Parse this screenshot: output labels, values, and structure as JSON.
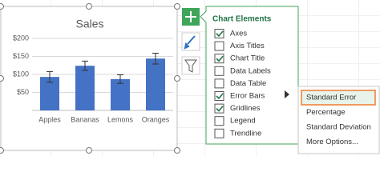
{
  "chart_data": {
    "type": "bar",
    "title": "Sales",
    "categories": [
      "Apples",
      "Bananas",
      "Lemons",
      "Oranges"
    ],
    "values": [
      93,
      124,
      87,
      144
    ],
    "errors": [
      15,
      13,
      12,
      15
    ],
    "color": "#4472c4",
    "ylim": [
      0,
      200
    ],
    "yticks": [
      {
        "value": 50,
        "label": "$50"
      },
      {
        "value": 100,
        "label": "$100"
      },
      {
        "value": 150,
        "label": "$150"
      },
      {
        "value": 200,
        "label": "$200"
      }
    ],
    "grid": true
  },
  "panel": {
    "title": "Chart Elements",
    "items": [
      {
        "label": "Axes",
        "checked": true
      },
      {
        "label": "Axis Titles",
        "checked": false
      },
      {
        "label": "Chart Title",
        "checked": true
      },
      {
        "label": "Data Labels",
        "checked": false
      },
      {
        "label": "Data Table",
        "checked": false
      },
      {
        "label": "Error Bars",
        "checked": true
      },
      {
        "label": "Gridlines",
        "checked": true
      },
      {
        "label": "Legend",
        "checked": false
      },
      {
        "label": "Trendline",
        "checked": false
      }
    ]
  },
  "submenu": {
    "items": [
      "Standard Error",
      "Percentage",
      "Standard Deviation",
      "More Options..."
    ],
    "selected": 0
  }
}
